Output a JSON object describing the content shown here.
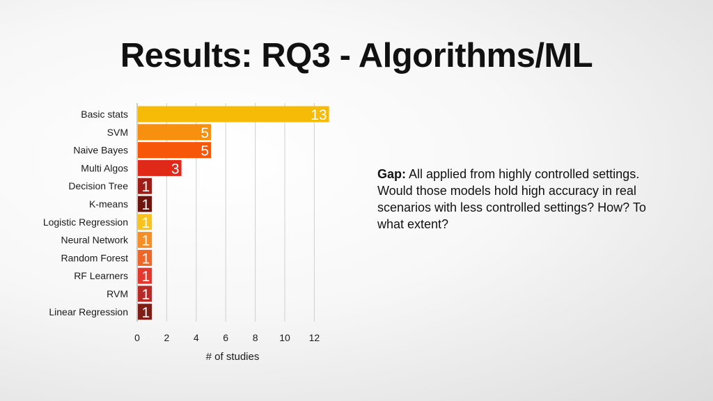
{
  "title": "Results: RQ3 - Algorithms/ML",
  "note": {
    "lead": "Gap:",
    "text": " All applied from highly controlled settings. Would those models hold high accuracy in real scenarios with less controlled settings? How? To what extent?"
  },
  "chart_data": {
    "type": "bar",
    "orientation": "horizontal",
    "categories": [
      "Basic stats",
      "SVM",
      "Naive Bayes",
      "Multi Algos",
      "Decision Tree",
      "K-means",
      "Logistic Regression",
      "Neural Network",
      "Random Forest",
      "RF Learners",
      "RVM",
      "Linear Regression"
    ],
    "values": [
      13,
      5,
      5,
      3,
      1,
      1,
      1,
      1,
      1,
      1,
      1,
      1
    ],
    "colors": [
      "#f6bb06",
      "#f7900e",
      "#f75708",
      "#e1291a",
      "#a01d17",
      "#6d140e",
      "#f9c31e",
      "#f68d25",
      "#ee6628",
      "#e2382d",
      "#b82a25",
      "#7f1d17"
    ],
    "xlabel": "# of studies",
    "xlim": [
      0,
      12
    ],
    "xticks": [
      0,
      2,
      4,
      6,
      8,
      10,
      12
    ],
    "grid": true,
    "data_labels": true
  }
}
